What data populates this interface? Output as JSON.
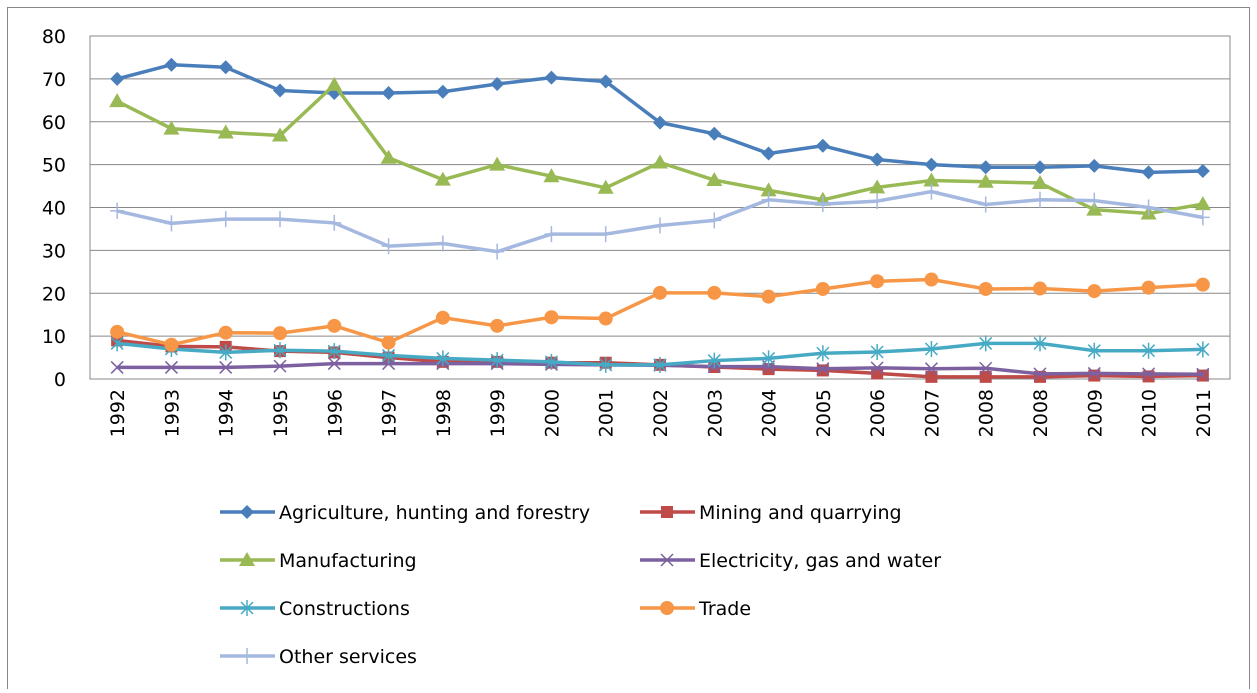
{
  "chart_data": {
    "type": "line",
    "categories": [
      "1992",
      "1993",
      "1994",
      "1995",
      "1996",
      "1997",
      "1998",
      "1999",
      "2000",
      "2001",
      "2002",
      "2003",
      "2004",
      "2005",
      "2006",
      "2007",
      "2008",
      "2008",
      "2009",
      "2010",
      "2011"
    ],
    "ylim": [
      0,
      80
    ],
    "yticks": [
      0,
      10,
      20,
      30,
      40,
      50,
      60,
      70,
      80
    ],
    "grid": true,
    "legend": "bottom",
    "series": [
      {
        "name": "Agriculture, hunting and forestry",
        "color": "#4a7ebb",
        "marker": "diamond",
        "values": [
          70,
          73.3,
          72.7,
          67.3,
          66.7,
          66.7,
          67,
          68.8,
          70.3,
          69.4,
          59.8,
          57.2,
          52.6,
          54.4,
          51.2,
          50,
          49.4,
          49.4,
          49.7,
          48.2,
          48.5
        ]
      },
      {
        "name": "Mining and quarrying",
        "color": "#be4b48",
        "marker": "square",
        "values": [
          9,
          7.6,
          7.5,
          6.5,
          6.2,
          5,
          4,
          4,
          3.8,
          3.8,
          3.3,
          2.8,
          2.3,
          2,
          1.3,
          0.5,
          0.5,
          0.5,
          0.8,
          0.6,
          0.8
        ]
      },
      {
        "name": "Manufacturing",
        "color": "#98b954",
        "marker": "triangle",
        "values": [
          64.8,
          58.4,
          57.5,
          56.8,
          68.6,
          51.6,
          46.5,
          50,
          47.3,
          44.6,
          50.5,
          46.4,
          44,
          41.8,
          44.7,
          46.3,
          46,
          45.7,
          39.5,
          38.6,
          40.8
        ]
      },
      {
        "name": "Electricity, gas and water",
        "color": "#7d60a0",
        "marker": "x",
        "values": [
          2.7,
          2.7,
          2.7,
          3,
          3.6,
          3.6,
          3.6,
          3.6,
          3.4,
          3.3,
          3.2,
          2.9,
          2.9,
          2.4,
          2.6,
          2.4,
          2.5,
          1.2,
          1.3,
          1.2,
          1.1
        ]
      },
      {
        "name": "Constructions",
        "color": "#46aac5",
        "marker": "asterisk",
        "values": [
          8.3,
          7,
          6.2,
          6.7,
          6.5,
          5.5,
          4.8,
          4.4,
          4,
          3.3,
          3.3,
          4.3,
          4.8,
          6,
          6.3,
          7,
          8.3,
          8.3,
          6.6,
          6.6,
          6.9
        ]
      },
      {
        "name": "Trade",
        "color": "#f79646",
        "marker": "circle",
        "values": [
          11,
          8,
          10.8,
          10.7,
          12.4,
          8.5,
          14.3,
          12.4,
          14.4,
          14.1,
          20.1,
          20.1,
          19.2,
          21,
          22.8,
          23.2,
          21,
          21.1,
          20.5,
          21.3,
          22
        ]
      },
      {
        "name": "Other services",
        "color": "#a5b8e0",
        "marker": "plus",
        "values": [
          39.2,
          36.3,
          37.3,
          37.3,
          36.4,
          31,
          31.6,
          29.7,
          33.8,
          33.8,
          35.8,
          37,
          41.8,
          40.8,
          41.5,
          43.7,
          40.7,
          41.8,
          41.6,
          40,
          37.7
        ]
      }
    ]
  }
}
